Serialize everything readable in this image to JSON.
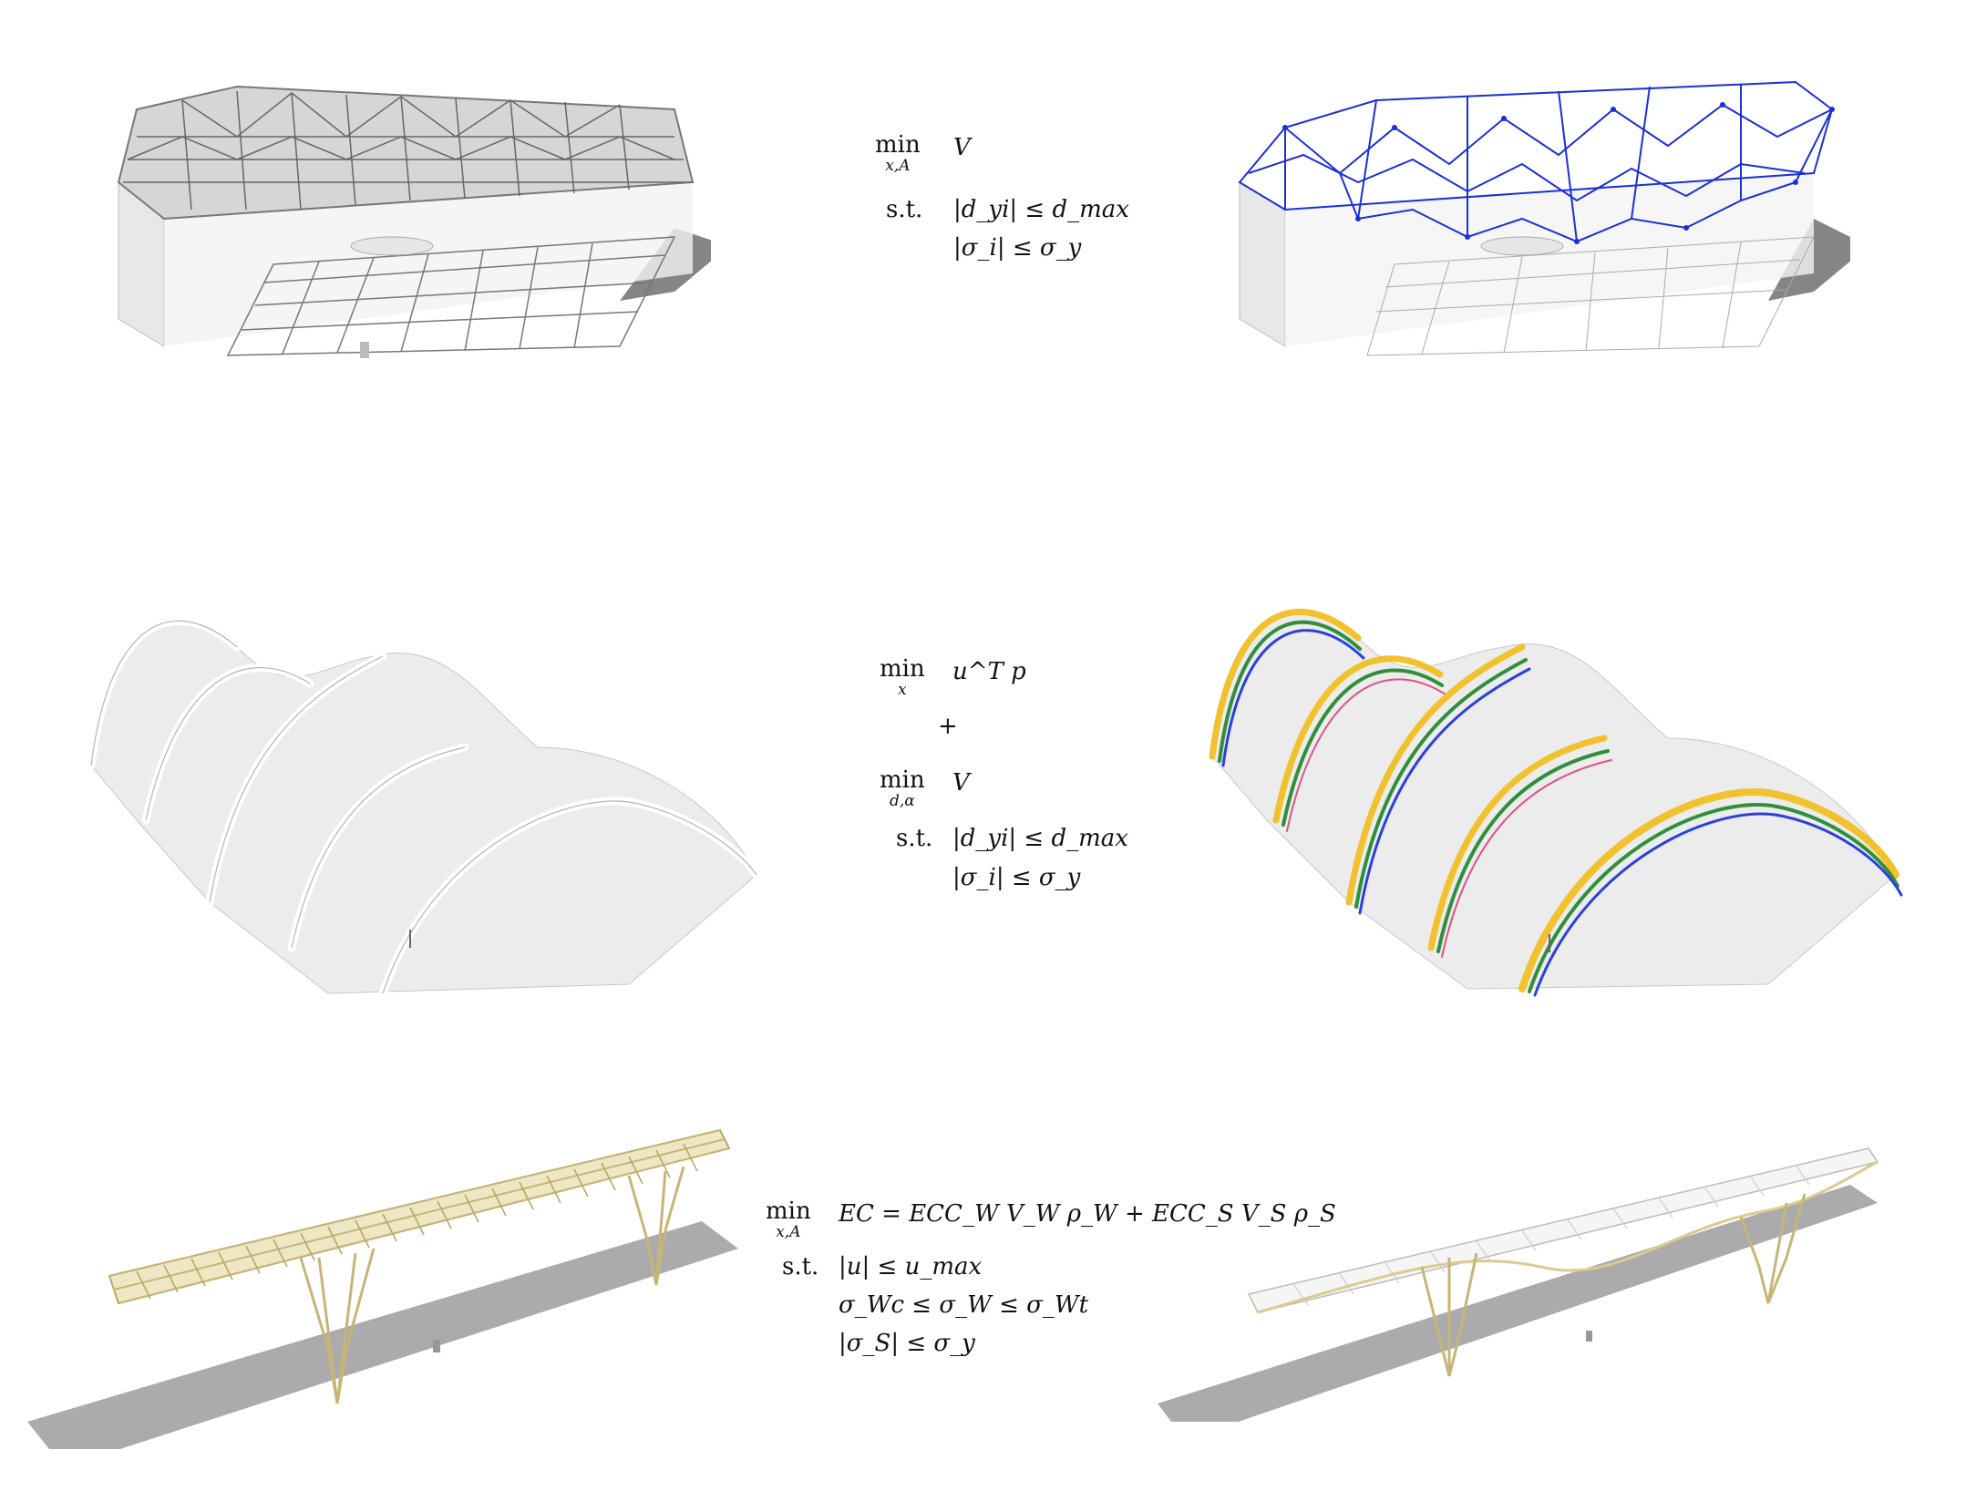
{
  "figure": {
    "rows": [
      {
        "id": "grid-shell",
        "objective": {
          "op": "min",
          "vars": "x,A",
          "expr": "V"
        },
        "constraints": [
          {
            "label": "s.t.",
            "expr": "|d_yi| ≤ d_max"
          },
          {
            "label": "",
            "expr": "|σ_i| ≤ σ_y"
          }
        ],
        "left_icon": "space-truss-roof-render",
        "right_icon": "optimized-space-truss-render",
        "accent": "#1a2fd8"
      },
      {
        "id": "arch-shell",
        "objective_1": {
          "op": "min",
          "vars": "x",
          "expr": "u^T p"
        },
        "combine": "+",
        "objective_2": {
          "op": "min",
          "vars": "d,α",
          "expr": "V"
        },
        "constraints": [
          {
            "label": "s.t.",
            "expr": "|d_yi| ≤ d_max"
          },
          {
            "label": "",
            "expr": "|σ_i| ≤ σ_y"
          }
        ],
        "left_icon": "arched-shell-render",
        "right_icon": "optimized-arched-shell-render",
        "colors": [
          "#f2c12e",
          "#2f8f3a",
          "#2b3fe0",
          "#e0508a"
        ]
      },
      {
        "id": "bridge",
        "objective": {
          "op": "min",
          "vars": "x,A",
          "expr": "EC = ECC_W V_W ρ_W + ECC_S V_S ρ_S"
        },
        "constraints": [
          {
            "label": "s.t.",
            "expr": "|u| ≤ u_max"
          },
          {
            "label": "",
            "expr": "σ_Wc ≤ σ_W ≤ σ_Wt"
          },
          {
            "label": "",
            "expr": "|σ_S| ≤ σ_y"
          }
        ],
        "left_icon": "timber-truss-bridge-render",
        "right_icon": "optimized-bridge-render",
        "accent": "#d9cc8e"
      }
    ]
  }
}
